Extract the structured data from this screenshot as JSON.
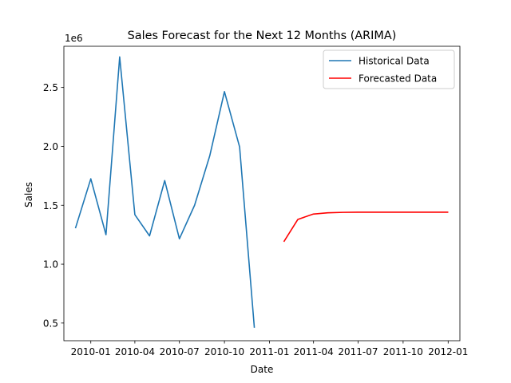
{
  "chart_data": {
    "type": "line",
    "title": "Sales Forecast for the Next 12 Months (ARIMA)",
    "xlabel": "Date",
    "ylabel": "Sales",
    "y_offset_text": "1e6",
    "xlim": [
      "2009-11-07",
      "2012-01-25"
    ],
    "ylim": [
      350000,
      2850000
    ],
    "x_ticks": [
      {
        "date": "2010-01-01",
        "label": "2010-01"
      },
      {
        "date": "2010-04-01",
        "label": "2010-04"
      },
      {
        "date": "2010-07-01",
        "label": "2010-07"
      },
      {
        "date": "2010-10-01",
        "label": "2010-10"
      },
      {
        "date": "2011-01-01",
        "label": "2011-01"
      },
      {
        "date": "2011-04-01",
        "label": "2011-04"
      },
      {
        "date": "2011-07-01",
        "label": "2011-07"
      },
      {
        "date": "2011-10-01",
        "label": "2011-10"
      },
      {
        "date": "2012-01-01",
        "label": "2012-01"
      }
    ],
    "y_ticks": [
      {
        "value": 500000,
        "label": "0.5"
      },
      {
        "value": 1000000,
        "label": "1.0"
      },
      {
        "value": 1500000,
        "label": "1.5"
      },
      {
        "value": 2000000,
        "label": "2.0"
      },
      {
        "value": 2500000,
        "label": "2.5"
      }
    ],
    "grid": false,
    "legend_position": "upper right",
    "series": [
      {
        "name": "Historical Data",
        "color": "#1f77b4",
        "x": [
          "2009-12-01",
          "2010-01-01",
          "2010-02-01",
          "2010-03-01",
          "2010-04-01",
          "2010-05-01",
          "2010-06-01",
          "2010-07-01",
          "2010-08-01",
          "2010-09-01",
          "2010-10-01",
          "2010-11-01",
          "2010-12-01"
        ],
        "y": [
          1310000,
          1725000,
          1250000,
          2760000,
          1420000,
          1240000,
          1710000,
          1215000,
          1500000,
          1920000,
          2465000,
          1995000,
          465000
        ]
      },
      {
        "name": "Forecasted Data",
        "color": "#ff0000",
        "x": [
          "2011-01-31",
          "2011-02-28",
          "2011-03-31",
          "2011-04-30",
          "2011-05-31",
          "2011-06-30",
          "2011-07-31",
          "2011-08-31",
          "2011-09-30",
          "2011-10-31",
          "2011-11-30",
          "2011-12-31"
        ],
        "y": [
          1195000,
          1380000,
          1425000,
          1436000,
          1440000,
          1441000,
          1441000,
          1441000,
          1441000,
          1441000,
          1441000,
          1441000
        ]
      }
    ]
  }
}
